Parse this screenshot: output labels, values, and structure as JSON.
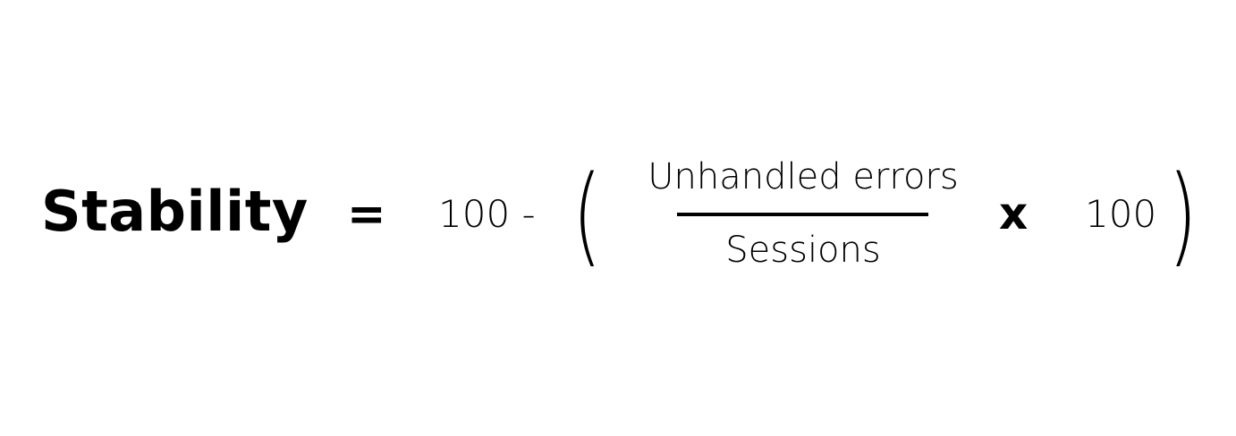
{
  "formula": {
    "lhs": "Stability",
    "equals": "=",
    "constant_minus": "100 -",
    "open_paren": "(",
    "numerator": "Unhandled errors",
    "denominator": "Sessions",
    "multiply": "x",
    "multiplier": "100",
    "close_paren": ")"
  }
}
